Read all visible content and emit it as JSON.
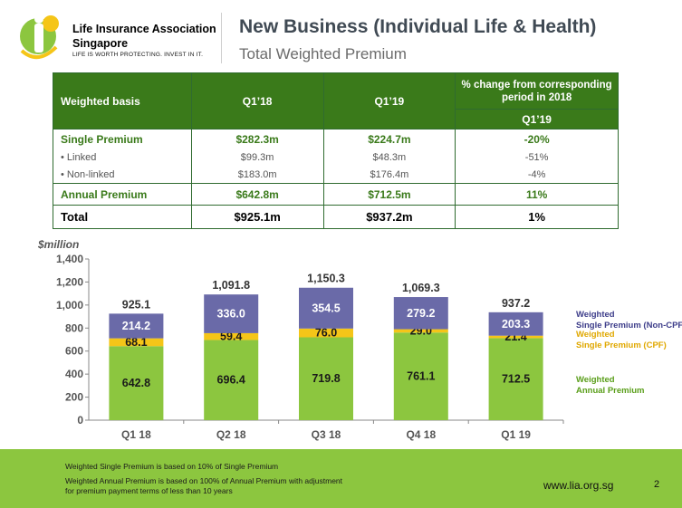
{
  "header": {
    "org_line1": "Life Insurance Association",
    "org_line2": "Singapore",
    "tagline": "LIFE IS WORTH PROTECTING. INVEST IN IT.",
    "title": "New Business (Individual Life & Health)",
    "subtitle": "Total Weighted Premium"
  },
  "table": {
    "header": {
      "col1": "Weighted basis",
      "col2": "Q1’18",
      "col3": "Q1’19",
      "col4_top": "% change from corresponding period in 2018",
      "col4_bottom": "Q1’19"
    },
    "rows": [
      {
        "label": "Single Premium",
        "q118": "$282.3m",
        "q119": "$224.7m",
        "change": "-20%"
      },
      {
        "label": "• Linked",
        "q118": "$99.3m",
        "q119": "$48.3m",
        "change": "-51%"
      },
      {
        "label": "• Non-linked",
        "q118": "$183.0m",
        "q119": "$176.4m",
        "change": "-4%"
      },
      {
        "label": "Annual Premium",
        "q118": "$642.8m",
        "q119": "$712.5m",
        "change": "11%"
      },
      {
        "label": "Total",
        "q118": "$925.1m",
        "q119": "$937.2m",
        "change": "1%"
      }
    ]
  },
  "chart_data": {
    "type": "bar",
    "stacked": true,
    "ylabel": "$million",
    "ylim": [
      0,
      1400
    ],
    "yticks": [
      "0",
      "200",
      "400",
      "600",
      "800",
      "1,000",
      "1,200",
      "1,400"
    ],
    "categories": [
      "Q1 18",
      "Q2 18",
      "Q3 18",
      "Q4 18",
      "Q1 19"
    ],
    "series": [
      {
        "name": "Weighted Annual Premium",
        "color": "#8cc63f",
        "values": [
          642.8,
          696.4,
          719.8,
          761.1,
          712.5
        ],
        "labels": [
          "642.8",
          "696.4",
          "719.8",
          "761.1",
          "712.5"
        ]
      },
      {
        "name": "Weighted Single Premium (CPF)",
        "color": "#f5c518",
        "values": [
          68.1,
          59.4,
          76.0,
          29.0,
          21.4
        ],
        "labels": [
          "68.1",
          "59.4",
          "76.0",
          "29.0",
          "21.4"
        ]
      },
      {
        "name": "Weighted Single Premium (Non-CPF)",
        "color": "#6a6aa8",
        "values": [
          214.2,
          336.0,
          354.5,
          279.2,
          203.3
        ],
        "labels": [
          "214.2",
          "336.0",
          "354.5",
          "279.2",
          "203.3"
        ]
      }
    ],
    "totals": [
      925.1,
      1091.8,
      1150.3,
      1069.3,
      937.2
    ],
    "total_labels": [
      "925.1",
      "1,091.8",
      "1,150.3",
      "1,069.3",
      "937.2"
    ],
    "legend": [
      {
        "line1": "Weighted",
        "line2": "Single Premium (Non-CPF)",
        "color": "#3d3d8a"
      },
      {
        "line1": "Weighted",
        "line2": "Single Premium (CPF)",
        "color": "#e0a800"
      },
      {
        "line1": "Weighted",
        "line2": "Annual Premium",
        "color": "#5a9e1a"
      }
    ],
    "legend_placement": "right",
    "grid": false
  },
  "footer": {
    "note1": "Weighted Single Premium is based on 10% of Single Premium",
    "note2": "Weighted Annual Premium is based on 100% of Annual Premium with adjustment",
    "note3": "for premium payment terms of less than 10 years",
    "url": "www.lia.org.sg",
    "page": "2"
  }
}
